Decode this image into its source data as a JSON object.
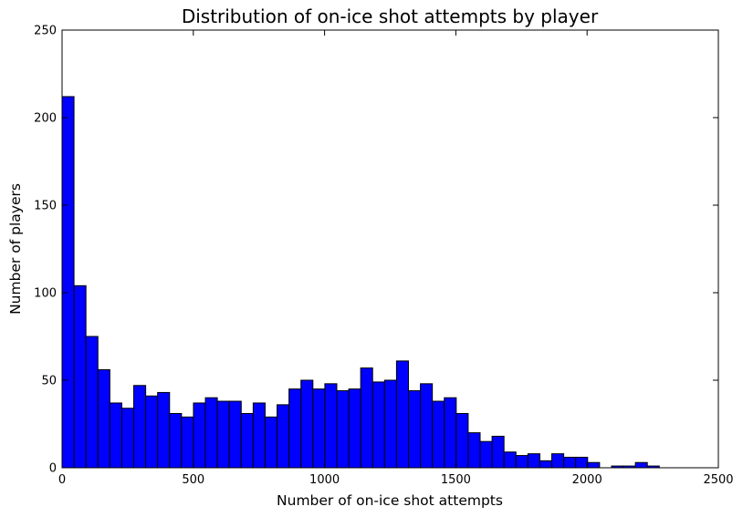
{
  "chart_data": {
    "type": "bar",
    "title": "Distribution of on-ice shot attempts by player",
    "xlabel": "Number of on-ice shot attempts",
    "ylabel": "Number of players",
    "xlim": [
      0,
      2500
    ],
    "ylim": [
      0,
      250
    ],
    "xticks": [
      "0",
      "500",
      "1000",
      "1500",
      "2000",
      "2500"
    ],
    "yticks": [
      "0",
      "50",
      "100",
      "150",
      "200",
      "250"
    ],
    "bin_width": 45.5,
    "bins_start": 0,
    "values": [
      212,
      104,
      75,
      56,
      37,
      34,
      47,
      41,
      43,
      31,
      29,
      37,
      40,
      38,
      38,
      31,
      37,
      29,
      36,
      45,
      50,
      45,
      48,
      44,
      45,
      57,
      49,
      50,
      61,
      44,
      48,
      38,
      40,
      31,
      20,
      15,
      18,
      9,
      7,
      8,
      4,
      8,
      6,
      6,
      3,
      0,
      1,
      1,
      3,
      1
    ],
    "bar_color": "#0000ff",
    "edge_color": "#000000",
    "grid": false,
    "legend": "none"
  }
}
